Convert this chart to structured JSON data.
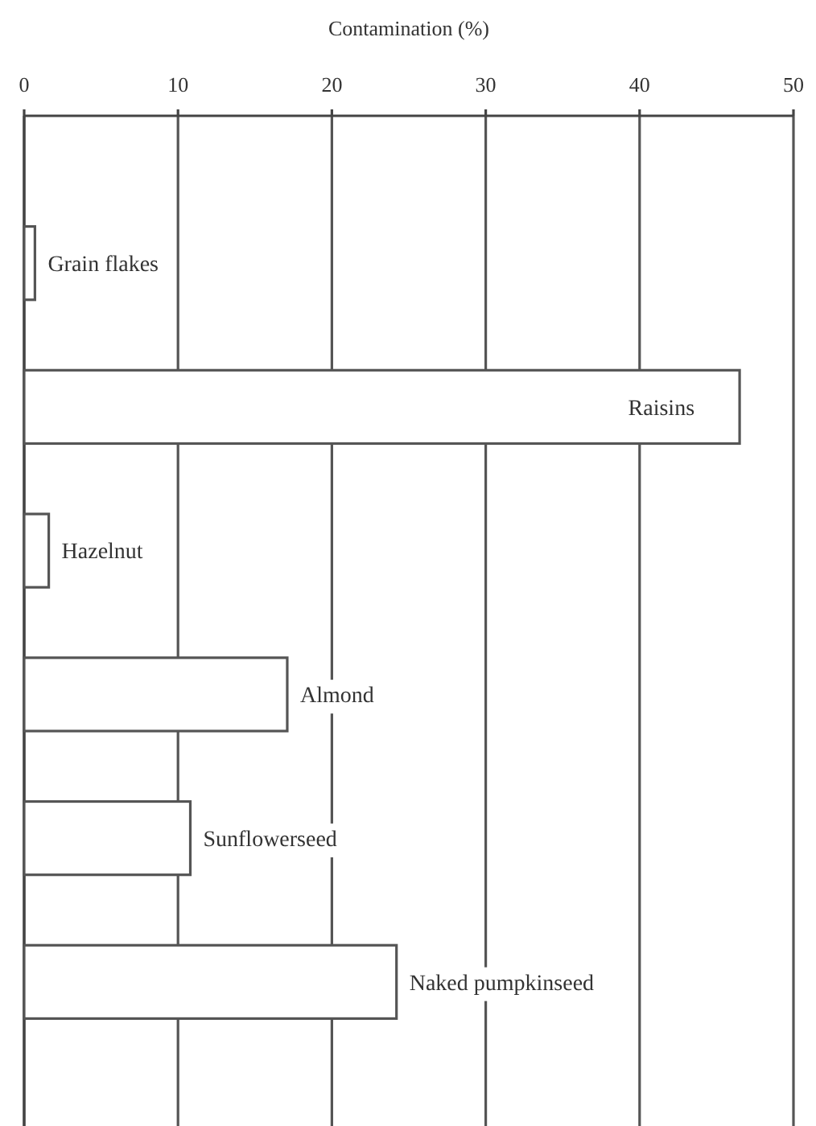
{
  "chart_data": {
    "type": "bar",
    "orientation": "horizontal",
    "xlabel": "Contamination (%)",
    "categories": [
      "Grain flakes",
      "Raisins",
      "Hazelnut",
      "Almond",
      "Sunflowerseed",
      "Naked pumpkinseed"
    ],
    "values": [
      0.7,
      46.5,
      1.6,
      17.1,
      10.8,
      24.2
    ],
    "color": "#ffffff",
    "xlim": [
      0,
      50
    ],
    "xticks": [
      0,
      10,
      20,
      30,
      40,
      50
    ],
    "grid": "x"
  }
}
